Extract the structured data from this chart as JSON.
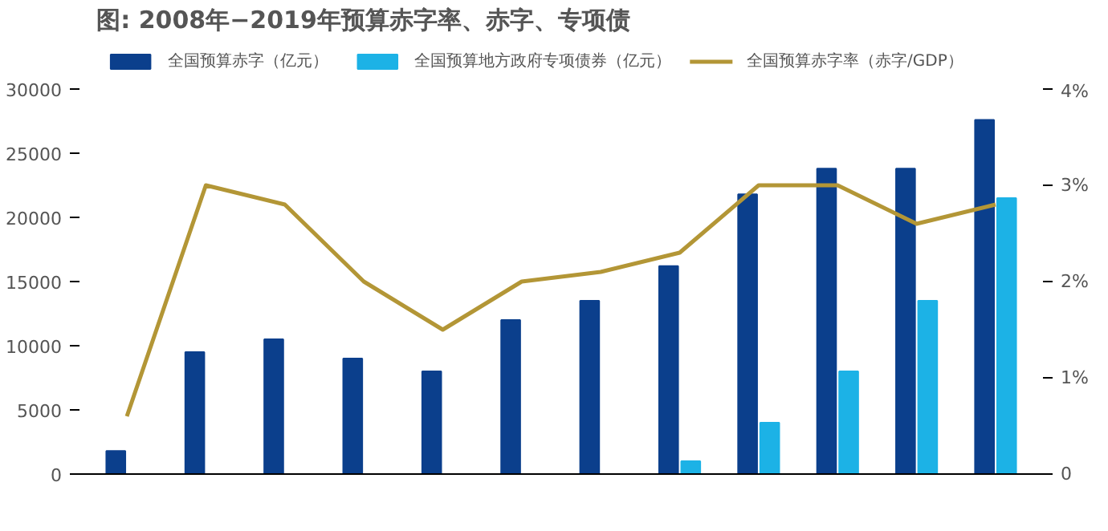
{
  "chart_data": {
    "type": "bar",
    "title": "图: 2008年−2019年预算赤字率、赤字、专项债",
    "categories": [
      null,
      null,
      null,
      null,
      null,
      null,
      null,
      null,
      null,
      null,
      null,
      null
    ],
    "series": [
      {
        "name": "全国预算赤字（亿元）",
        "color": "#0b3f8c",
        "values": [
          1800,
          9500,
          10500,
          9000,
          8000,
          12000,
          13500,
          16200,
          21800,
          23800,
          23800,
          27600
        ]
      },
      {
        "name": "全国预算地方政府专项债券（亿元）",
        "color": "#1cb2e6",
        "values": [
          null,
          null,
          null,
          null,
          null,
          null,
          null,
          1000,
          4000,
          8000,
          13500,
          21500
        ]
      },
      {
        "name": "全国预算赤字率（赤字/GDP）",
        "color": "#b39636",
        "type": "line",
        "axis": "y2",
        "values": [
          0.6,
          3.0,
          2.8,
          2.0,
          1.5,
          2.0,
          2.1,
          2.3,
          3.0,
          3.0,
          2.6,
          2.8
        ]
      }
    ],
    "ylim": [
      0,
      30000
    ],
    "yticks": [
      0,
      5000,
      10000,
      15000,
      20000,
      25000,
      30000
    ],
    "y2lim": [
      0,
      4
    ],
    "y2ticks": [
      {
        "value": 0,
        "label": "0"
      },
      {
        "value": 1,
        "label": "1%"
      },
      {
        "value": 2,
        "label": "2%"
      },
      {
        "value": 3,
        "label": "3%"
      },
      {
        "value": 4,
        "label": "4%"
      }
    ],
    "grid": false,
    "legend": "top",
    "marker": "none",
    "line_style": "solid"
  }
}
